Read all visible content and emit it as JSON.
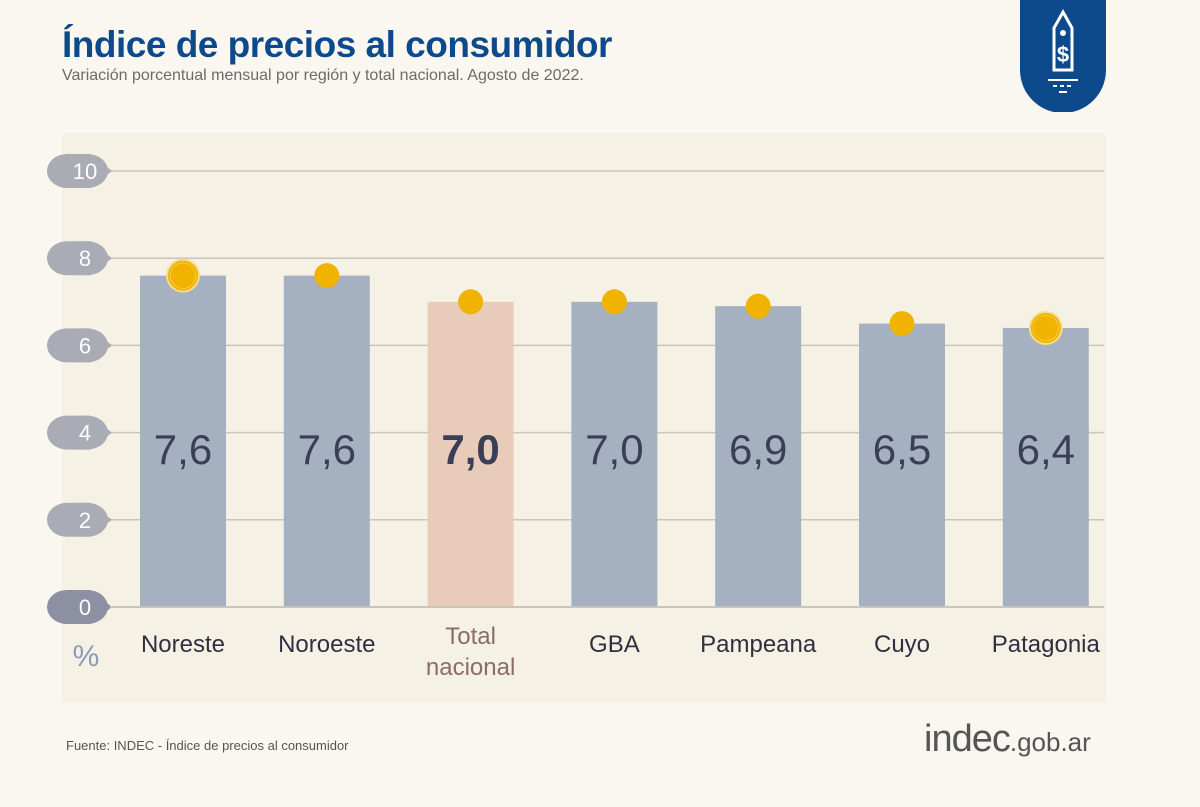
{
  "header": {
    "title": "Índice de precios al consumidor",
    "subtitle": "Variación porcentual mensual por región y total nacional. Agosto de 2022."
  },
  "logo": {
    "icon": "price-tag-dollar-icon",
    "color": "#0d4a8c"
  },
  "chart_data": {
    "type": "bar",
    "title": "Índice de precios al consumidor",
    "subtitle": "Variación porcentual mensual por región y total nacional. Agosto de 2022.",
    "ylabel": "%",
    "ylim": [
      0,
      10
    ],
    "yticks": [
      "0",
      "2",
      "4",
      "6",
      "8",
      "10"
    ],
    "grid": true,
    "categories": [
      "Noreste",
      "Noroeste",
      "Total nacional",
      "GBA",
      "Pampeana",
      "Cuyo",
      "Patagonia"
    ],
    "values": [
      7.6,
      7.6,
      7.0,
      7.0,
      6.9,
      6.5,
      6.4
    ],
    "value_labels": [
      "7,6",
      "7,6",
      "7,0",
      "7,0",
      "6,9",
      "6,5",
      "6,4"
    ],
    "highlighted_category": "Total nacional",
    "ringed_markers": [
      "Noreste",
      "Patagonia"
    ],
    "colors": {
      "bar": "#a5b0c0",
      "highlight_bar": "#e8cbb8",
      "marker": "#f0b400",
      "label": "#3b3f55",
      "highlight_label": "#8a6e60",
      "tick_bubble": "#a9abb5"
    }
  },
  "footer": {
    "source": "Fuente: INDEC - Índice de precios al consumidor",
    "brand_main": "indec",
    "brand_suffix": ".gob.ar"
  }
}
